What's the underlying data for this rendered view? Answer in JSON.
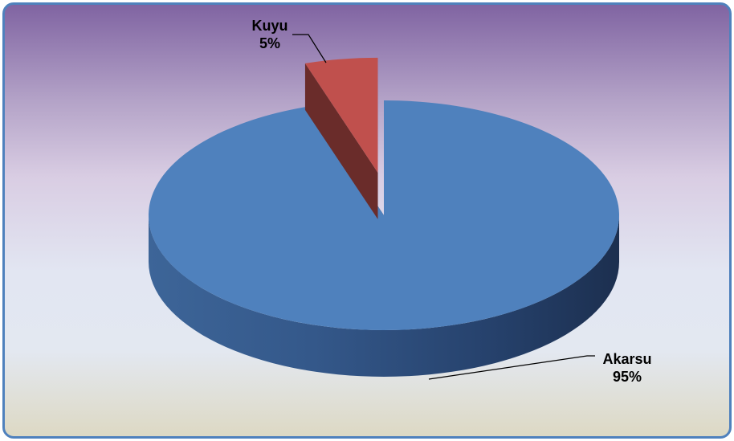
{
  "chart_data": {
    "type": "pie",
    "style": "3d-exploded",
    "categories": [
      "Akarsu",
      "Kuyu"
    ],
    "values": [
      95,
      5
    ],
    "value_labels": [
      "95%",
      "5%"
    ],
    "colors": [
      "#4f81bd",
      "#c0504d"
    ],
    "legend": "none"
  }
}
